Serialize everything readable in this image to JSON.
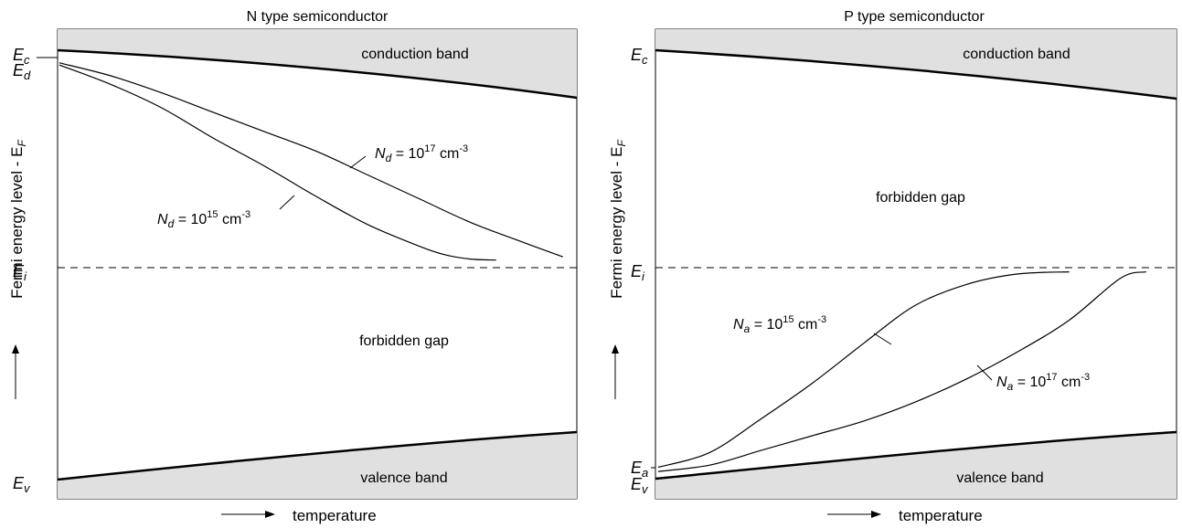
{
  "chart_data": [
    {
      "type": "line",
      "title": "N  type semiconductor",
      "xlabel": "temperature",
      "ylabel": "Fermi energy level - E",
      "ylabel_sub": "F",
      "levels": [
        {
          "main": "E",
          "sub": "c"
        },
        {
          "main": "E",
          "sub": "d"
        },
        {
          "main": "E",
          "sub": "i"
        },
        {
          "main": "E",
          "sub": "v"
        }
      ],
      "regions": {
        "top": "conduction band",
        "gap": "forbidden gap",
        "bottom": "valence band"
      },
      "series": [
        {
          "name_parts": [
            "N",
            "d",
            " = 10",
            "15",
            " cm",
            "-3"
          ],
          "x": [
            0.0,
            0.1,
            0.2,
            0.3,
            0.4,
            0.5,
            0.6,
            0.7,
            0.75,
            0.8,
            0.85
          ],
          "y": [
            0.94,
            0.85,
            0.74,
            0.6,
            0.47,
            0.33,
            0.2,
            0.1,
            0.06,
            0.04,
            0.035
          ]
        },
        {
          "name_parts": [
            "N",
            "d",
            " = 10",
            "17",
            " cm",
            "-3"
          ],
          "x": [
            0.0,
            0.1,
            0.2,
            0.3,
            0.4,
            0.5,
            0.6,
            0.7,
            0.8,
            0.9,
            0.98
          ],
          "y": [
            0.95,
            0.89,
            0.81,
            0.72,
            0.63,
            0.54,
            0.43,
            0.32,
            0.21,
            0.12,
            0.05
          ]
        }
      ]
    },
    {
      "type": "line",
      "title": "P  type semiconductor",
      "xlabel": "temperature",
      "ylabel": "Fermi energy level - E",
      "ylabel_sub": "F",
      "levels": [
        {
          "main": "E",
          "sub": "c"
        },
        {
          "main": "E",
          "sub": "i"
        },
        {
          "main": "E",
          "sub": "a"
        },
        {
          "main": "E",
          "sub": "v"
        }
      ],
      "regions": {
        "top": "conduction band",
        "gap": "forbidden gap",
        "bottom": "valence band"
      },
      "series": [
        {
          "name_parts": [
            "N",
            "a",
            " = 10",
            "15",
            " cm",
            "-3"
          ],
          "x": [
            0.0,
            0.1,
            0.2,
            0.3,
            0.4,
            0.5,
            0.6,
            0.7,
            0.8
          ],
          "y": [
            -0.95,
            -0.88,
            -0.72,
            -0.55,
            -0.36,
            -0.18,
            -0.08,
            -0.03,
            -0.02
          ]
        },
        {
          "name_parts": [
            "N",
            "a",
            " = 10",
            "17",
            " cm",
            "-3"
          ],
          "x": [
            0.0,
            0.1,
            0.2,
            0.3,
            0.4,
            0.5,
            0.6,
            0.7,
            0.8,
            0.9,
            0.95
          ],
          "y": [
            -0.97,
            -0.94,
            -0.87,
            -0.8,
            -0.73,
            -0.64,
            -0.53,
            -0.4,
            -0.25,
            -0.05,
            -0.02
          ]
        }
      ]
    }
  ]
}
